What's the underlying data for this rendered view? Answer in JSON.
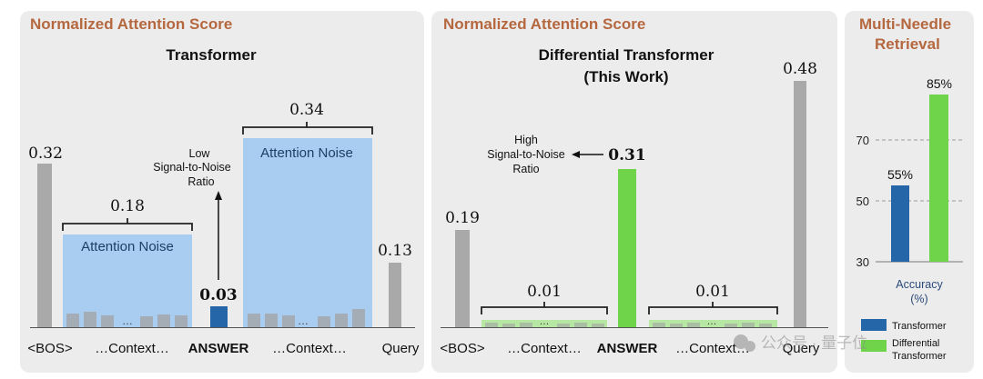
{
  "panels": {
    "left": {
      "header": "Normalized Attention Score",
      "title": "Transformer",
      "noise_label": "Attention Noise",
      "annotation": [
        "Low",
        "Signal-to-Noise",
        "Ratio"
      ]
    },
    "middle": {
      "header": "Normalized Attention Score",
      "title_line1": "Differential Transformer",
      "title_line2": "(This Work)",
      "annotation": [
        "High",
        "Signal-to-Noise",
        "Ratio"
      ]
    },
    "right": {
      "header_line1": "Multi-Needle",
      "header_line2": "Retrieval",
      "axis_label_line1": "Accuracy",
      "axis_label_line2": "(%)",
      "legend": [
        "Transformer",
        "Differential",
        "Transformer"
      ]
    }
  },
  "watermark": "公众号 · 量子位",
  "colors": {
    "panel_bg": "#ececec",
    "header": "#b5683f",
    "gray_bar": "#a9a9a9",
    "noise_fill": "#a9cdf0",
    "transformer_blue": "#2466a8",
    "diff_green": "#6fd44a",
    "noise_green": "#b7e8a3"
  },
  "chart_data": [
    {
      "type": "bar",
      "title": "Transformer",
      "ylabel": "Normalized Attention Score",
      "categories": [
        "<BOS>",
        "…Context…",
        "ANSWER",
        "…Context…",
        "Query"
      ],
      "values": [
        0.32,
        0.18,
        0.03,
        0.34,
        0.13
      ],
      "value_labels": [
        "0.32",
        "0.18",
        "0.03",
        "0.34",
        "0.13"
      ],
      "ellipsis": "…",
      "annotations": [
        "Attention Noise",
        "Attention Noise",
        "Low Signal-to-Noise Ratio"
      ]
    },
    {
      "type": "bar",
      "title": "Differential Transformer (This Work)",
      "ylabel": "Normalized Attention Score",
      "categories": [
        "<BOS>",
        "…Context…",
        "ANSWER",
        "…Context…",
        "Query"
      ],
      "values": [
        0.19,
        0.01,
        0.31,
        0.01,
        0.48
      ],
      "value_labels": [
        "0.19",
        "0.01",
        "0.31",
        "0.01",
        "0.48"
      ],
      "ellipsis": "…",
      "annotations": [
        "High Signal-to-Noise Ratio"
      ]
    },
    {
      "type": "bar",
      "title": "Multi-Needle Retrieval",
      "ylabel": "Accuracy (%)",
      "series": [
        {
          "name": "Transformer",
          "values": [
            55
          ]
        },
        {
          "name": "Differential Transformer",
          "values": [
            85
          ]
        }
      ],
      "value_labels": [
        "55%",
        "85%"
      ],
      "yticks": [
        30,
        50,
        70
      ],
      "ylim": [
        30,
        85
      ],
      "grid": true,
      "legend": "bottom"
    }
  ]
}
